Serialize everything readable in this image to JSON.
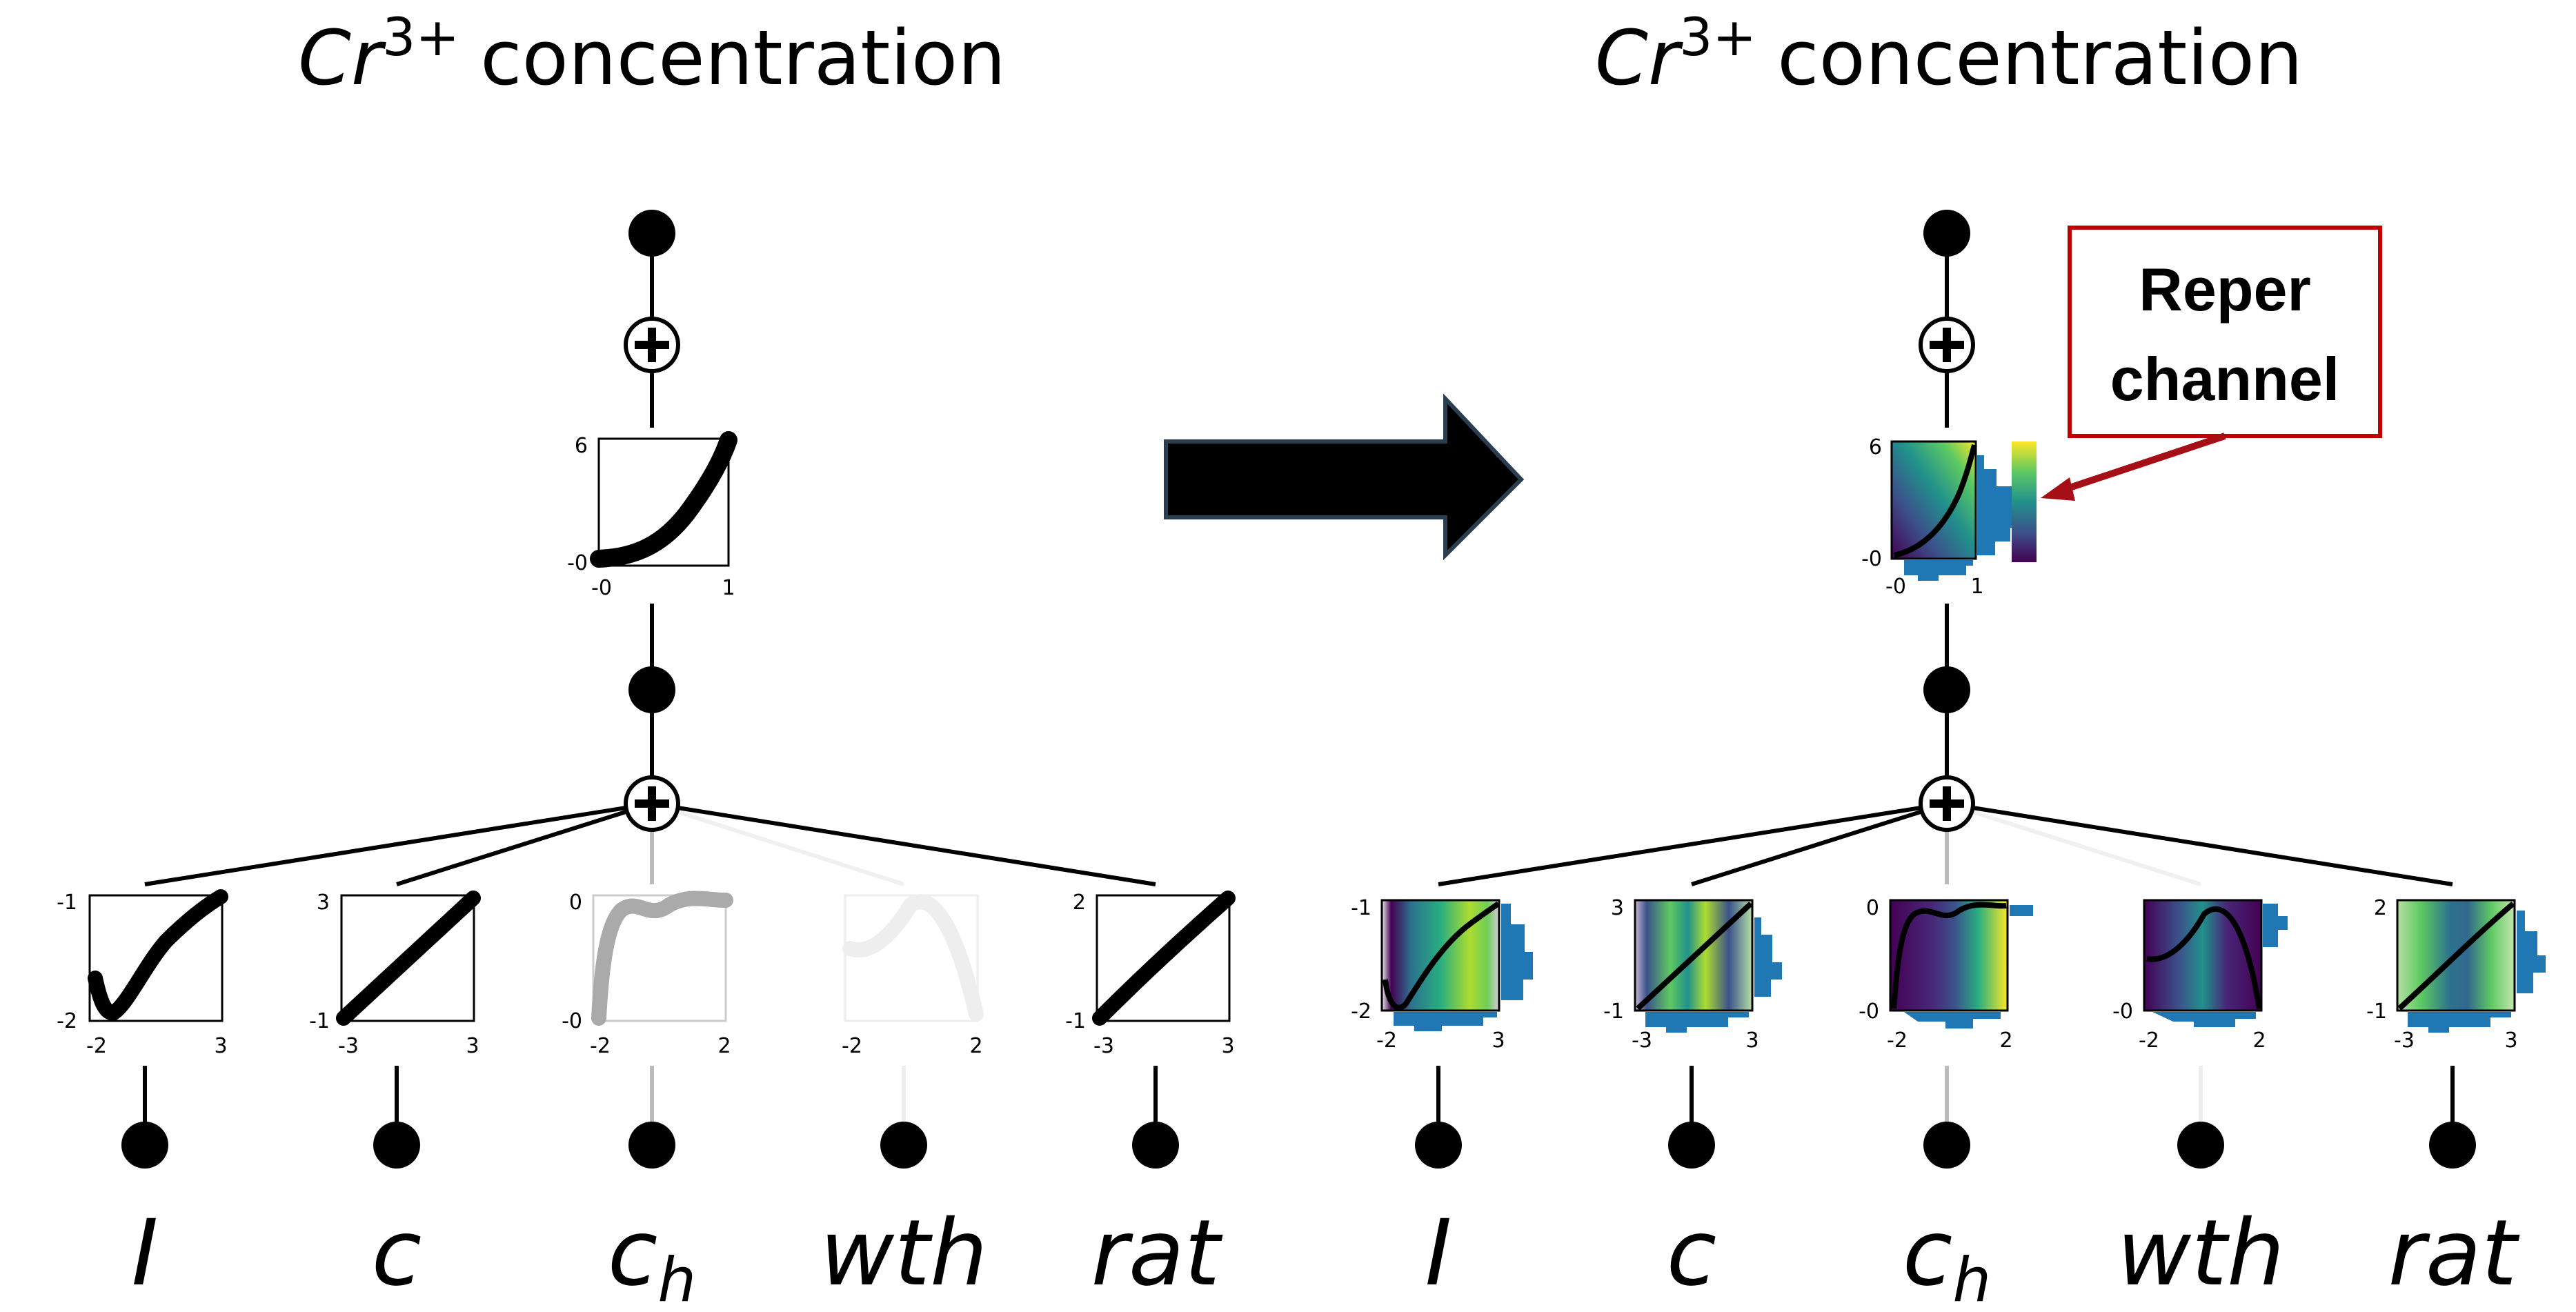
{
  "left_panel": {
    "title_base": "Cr",
    "title_sup": "3+",
    "title_rest": "concentration",
    "output_ticks": {
      "ymax": "6",
      "ymin": "-0",
      "xmin": "-0",
      "xmax": "1"
    },
    "inputs": [
      {
        "name": "I",
        "sub": "",
        "ymax": "-1",
        "ymin": "-2",
        "xmin": "-2",
        "xmax": "3"
      },
      {
        "name": "c",
        "sub": "",
        "ymax": "3",
        "ymin": "-1",
        "xmin": "-3",
        "xmax": "3"
      },
      {
        "name": "c",
        "sub": "h",
        "ymax": "0",
        "ymin": "-0",
        "xmin": "-2",
        "xmax": "2"
      },
      {
        "name": "wth",
        "sub": "",
        "ymax": "",
        "ymin": "",
        "xmin": "-2",
        "xmax": "2"
      },
      {
        "name": "rat",
        "sub": "",
        "ymax": "2",
        "ymin": "-1",
        "xmin": "-3",
        "xmax": "3"
      }
    ]
  },
  "right_panel": {
    "title_base": "Cr",
    "title_sup": "3+",
    "title_rest": "concentration",
    "output_ticks": {
      "ymax": "6",
      "ymin": "-0",
      "xmin": "-0",
      "xmax": "1"
    },
    "inputs": [
      {
        "name": "I",
        "sub": "",
        "ymax": "-1",
        "ymin": "-2",
        "xmin": "-2",
        "xmax": "3"
      },
      {
        "name": "c",
        "sub": "",
        "ymax": "3",
        "ymin": "-1",
        "xmin": "-3",
        "xmax": "3"
      },
      {
        "name": "c",
        "sub": "h",
        "ymax": "0",
        "ymin": "-0",
        "xmin": "-2",
        "xmax": "2"
      },
      {
        "name": "wth",
        "sub": "",
        "ymax": "",
        "ymin": "-0",
        "xmin": "-2",
        "xmax": "2"
      },
      {
        "name": "rat",
        "sub": "",
        "ymax": "2",
        "ymin": "-1",
        "xmin": "-3",
        "xmax": "3"
      }
    ]
  },
  "callout": {
    "line1": "Reper",
    "line2": "channel"
  },
  "colors": {
    "callout_border": "#c00000",
    "callout_arrow": "#a50f15",
    "histogram": "#1f77b4",
    "arrow": "#000000"
  }
}
